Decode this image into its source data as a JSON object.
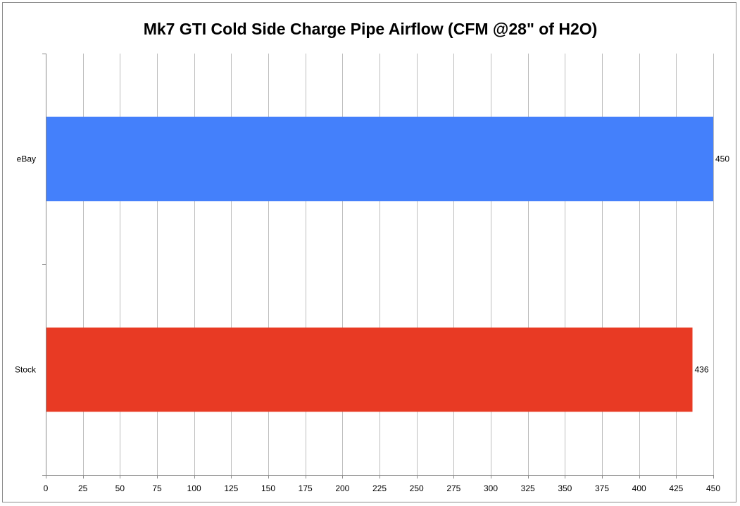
{
  "chart_data": {
    "type": "bar",
    "orientation": "horizontal",
    "title": "Mk7 GTI Cold Side Charge Pipe Airflow (CFM @28\" of H2O)",
    "xlabel": "",
    "ylabel": "",
    "categories": [
      "eBay",
      "Stock"
    ],
    "values": [
      450,
      436
    ],
    "data_labels": [
      "450",
      "436"
    ],
    "colors": [
      "#4480fb",
      "#e83a24"
    ],
    "xlim": [
      0,
      450
    ],
    "x_ticks": [
      "0",
      "25",
      "50",
      "75",
      "100",
      "125",
      "150",
      "175",
      "200",
      "225",
      "250",
      "275",
      "300",
      "325",
      "350",
      "375",
      "400",
      "425",
      "450"
    ],
    "grid": true,
    "legend": "none"
  }
}
